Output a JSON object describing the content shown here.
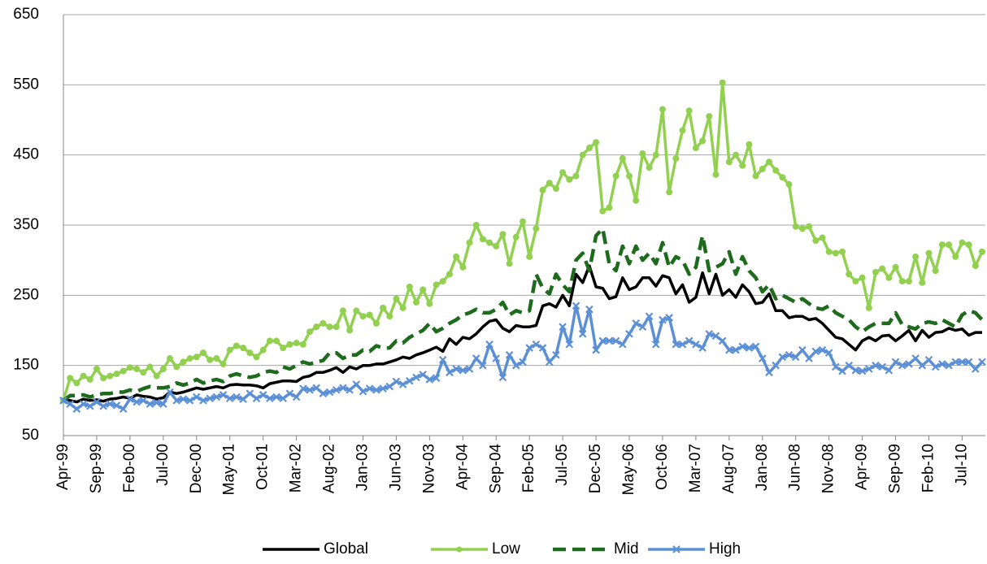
{
  "chart_data": {
    "type": "line",
    "categories": [
      "Apr-99",
      null,
      null,
      null,
      null,
      "Sep-99",
      null,
      null,
      null,
      null,
      "Feb-00",
      null,
      null,
      null,
      null,
      "Jul-00",
      null,
      null,
      null,
      null,
      "Dec-00",
      null,
      null,
      null,
      null,
      "May-01",
      null,
      null,
      null,
      null,
      "Oct-01",
      null,
      null,
      null,
      null,
      "Mar-02",
      null,
      null,
      null,
      null,
      "Aug-02",
      null,
      null,
      null,
      null,
      "Jan-03",
      null,
      null,
      null,
      null,
      "Jun-03",
      null,
      null,
      null,
      null,
      "Nov-03",
      null,
      null,
      null,
      null,
      "Apr-04",
      null,
      null,
      null,
      null,
      "Sep-04",
      null,
      null,
      null,
      null,
      "Feb-05",
      null,
      null,
      null,
      null,
      "Jul-05",
      null,
      null,
      null,
      null,
      "Dec-05",
      null,
      null,
      null,
      null,
      "May-06",
      null,
      null,
      null,
      null,
      "Oct-06",
      null,
      null,
      null,
      null,
      "Mar-07",
      null,
      null,
      null,
      null,
      "Aug-07",
      null,
      null,
      null,
      null,
      "Jan-08",
      null,
      null,
      null,
      null,
      "Jun-08",
      null,
      null,
      null,
      null,
      "Nov-08",
      null,
      null,
      null,
      null,
      "Apr-09",
      null,
      null,
      null,
      null,
      "Sep-09",
      null,
      null,
      null,
      null,
      "Feb-10",
      null,
      null,
      null,
      null,
      "Jul-10",
      null,
      null,
      null
    ],
    "series": [
      {
        "name": "Global",
        "color": "#000000",
        "dashed": false,
        "marker": "none",
        "values": [
          100,
          100,
          98,
          102,
          100,
          101,
          99,
          102,
          103,
          105,
          103,
          108,
          106,
          105,
          102,
          104,
          112,
          110,
          112,
          115,
          118,
          116,
          118,
          120,
          118,
          122,
          123,
          122,
          122,
          121,
          118,
          124,
          126,
          128,
          128,
          127,
          133,
          135,
          140,
          140,
          143,
          147,
          140,
          148,
          145,
          150,
          150,
          152,
          152,
          155,
          158,
          162,
          160,
          165,
          168,
          172,
          176,
          170,
          188,
          180,
          190,
          188,
          195,
          205,
          213,
          215,
          203,
          198,
          207,
          205,
          205,
          207,
          235,
          238,
          233,
          250,
          235,
          280,
          268,
          292,
          262,
          260,
          245,
          248,
          275,
          258,
          262,
          275,
          275,
          263,
          278,
          275,
          252,
          265,
          240,
          247,
          282,
          252,
          280,
          250,
          258,
          247,
          265,
          255,
          238,
          240,
          252,
          228,
          228,
          218,
          220,
          220,
          215,
          217,
          210,
          200,
          190,
          188,
          180,
          172,
          185,
          190,
          185,
          192,
          193,
          185,
          192,
          200,
          185,
          200,
          190,
          197,
          198,
          203,
          200,
          202,
          193,
          197,
          197
        ]
      },
      {
        "name": "Low",
        "color": "#92d050",
        "dashed": false,
        "marker": "circle",
        "values": [
          100,
          132,
          125,
          135,
          130,
          145,
          132,
          135,
          138,
          142,
          147,
          145,
          140,
          148,
          135,
          145,
          160,
          148,
          155,
          160,
          162,
          168,
          158,
          160,
          152,
          172,
          178,
          175,
          168,
          162,
          172,
          185,
          185,
          175,
          180,
          182,
          180,
          198,
          205,
          210,
          205,
          205,
          228,
          200,
          228,
          220,
          222,
          210,
          232,
          220,
          245,
          232,
          262,
          240,
          258,
          238,
          265,
          270,
          280,
          305,
          290,
          325,
          350,
          330,
          325,
          320,
          337,
          295,
          333,
          355,
          305,
          345,
          400,
          410,
          402,
          425,
          415,
          420,
          450,
          460,
          468,
          370,
          375,
          420,
          445,
          420,
          385,
          452,
          432,
          450,
          515,
          397,
          445,
          485,
          513,
          460,
          470,
          505,
          422,
          553,
          440,
          450,
          435,
          465,
          420,
          430,
          440,
          428,
          418,
          408,
          348,
          345,
          348,
          328,
          332,
          312,
          310,
          312,
          280,
          270,
          275,
          232,
          283,
          288,
          275,
          290,
          270,
          270,
          305,
          268,
          310,
          285,
          322,
          322,
          305,
          325,
          322,
          292,
          312
        ]
      },
      {
        "name": "Mid",
        "color": "#1e6b1e",
        "dashed": true,
        "marker": "none",
        "values": [
          100,
          107,
          107,
          108,
          105,
          108,
          110,
          110,
          112,
          112,
          115,
          113,
          117,
          120,
          118,
          118,
          120,
          125,
          122,
          125,
          130,
          125,
          128,
          130,
          127,
          135,
          138,
          135,
          133,
          135,
          140,
          142,
          140,
          148,
          145,
          150,
          155,
          152,
          155,
          157,
          168,
          168,
          160,
          165,
          165,
          172,
          170,
          178,
          175,
          175,
          185,
          182,
          190,
          195,
          200,
          210,
          198,
          203,
          210,
          215,
          222,
          225,
          230,
          225,
          225,
          230,
          240,
          222,
          228,
          225,
          228,
          280,
          260,
          252,
          280,
          265,
          255,
          300,
          310,
          285,
          335,
          345,
          295,
          285,
          320,
          295,
          320,
          300,
          310,
          295,
          325,
          290,
          305,
          300,
          280,
          290,
          335,
          285,
          290,
          295,
          312,
          280,
          305,
          285,
          275,
          255,
          265,
          245,
          250,
          245,
          240,
          245,
          238,
          232,
          230,
          235,
          225,
          220,
          215,
          205,
          198,
          205,
          210,
          210,
          210,
          225,
          208,
          205,
          202,
          210,
          212,
          210,
          215,
          210,
          205,
          222,
          228,
          225,
          215
        ]
      },
      {
        "name": "High",
        "color": "#5b8fd6",
        "dashed": false,
        "marker": "x",
        "values": [
          100,
          95,
          88,
          95,
          92,
          98,
          92,
          95,
          93,
          88,
          102,
          98,
          100,
          95,
          97,
          95,
          112,
          100,
          102,
          100,
          105,
          100,
          103,
          105,
          108,
          103,
          105,
          102,
          110,
          103,
          108,
          103,
          105,
          103,
          110,
          105,
          117,
          115,
          118,
          110,
          112,
          115,
          118,
          115,
          123,
          113,
          117,
          115,
          117,
          120,
          127,
          123,
          128,
          133,
          137,
          130,
          132,
          158,
          140,
          145,
          143,
          145,
          160,
          150,
          180,
          160,
          133,
          165,
          150,
          155,
          175,
          180,
          175,
          155,
          165,
          205,
          180,
          235,
          195,
          230,
          172,
          185,
          185,
          185,
          180,
          195,
          210,
          205,
          220,
          180,
          215,
          218,
          180,
          180,
          185,
          180,
          175,
          195,
          192,
          185,
          172,
          172,
          177,
          175,
          177,
          160,
          140,
          150,
          162,
          165,
          162,
          172,
          160,
          170,
          172,
          168,
          148,
          142,
          150,
          143,
          142,
          145,
          150,
          148,
          143,
          155,
          150,
          152,
          160,
          150,
          158,
          148,
          152,
          150,
          155,
          155,
          155,
          145,
          155
        ]
      }
    ],
    "ylim": [
      50,
      650
    ],
    "yticks": [
      50,
      150,
      250,
      350,
      450,
      550,
      650
    ],
    "grid": true,
    "legend": "bottom"
  }
}
